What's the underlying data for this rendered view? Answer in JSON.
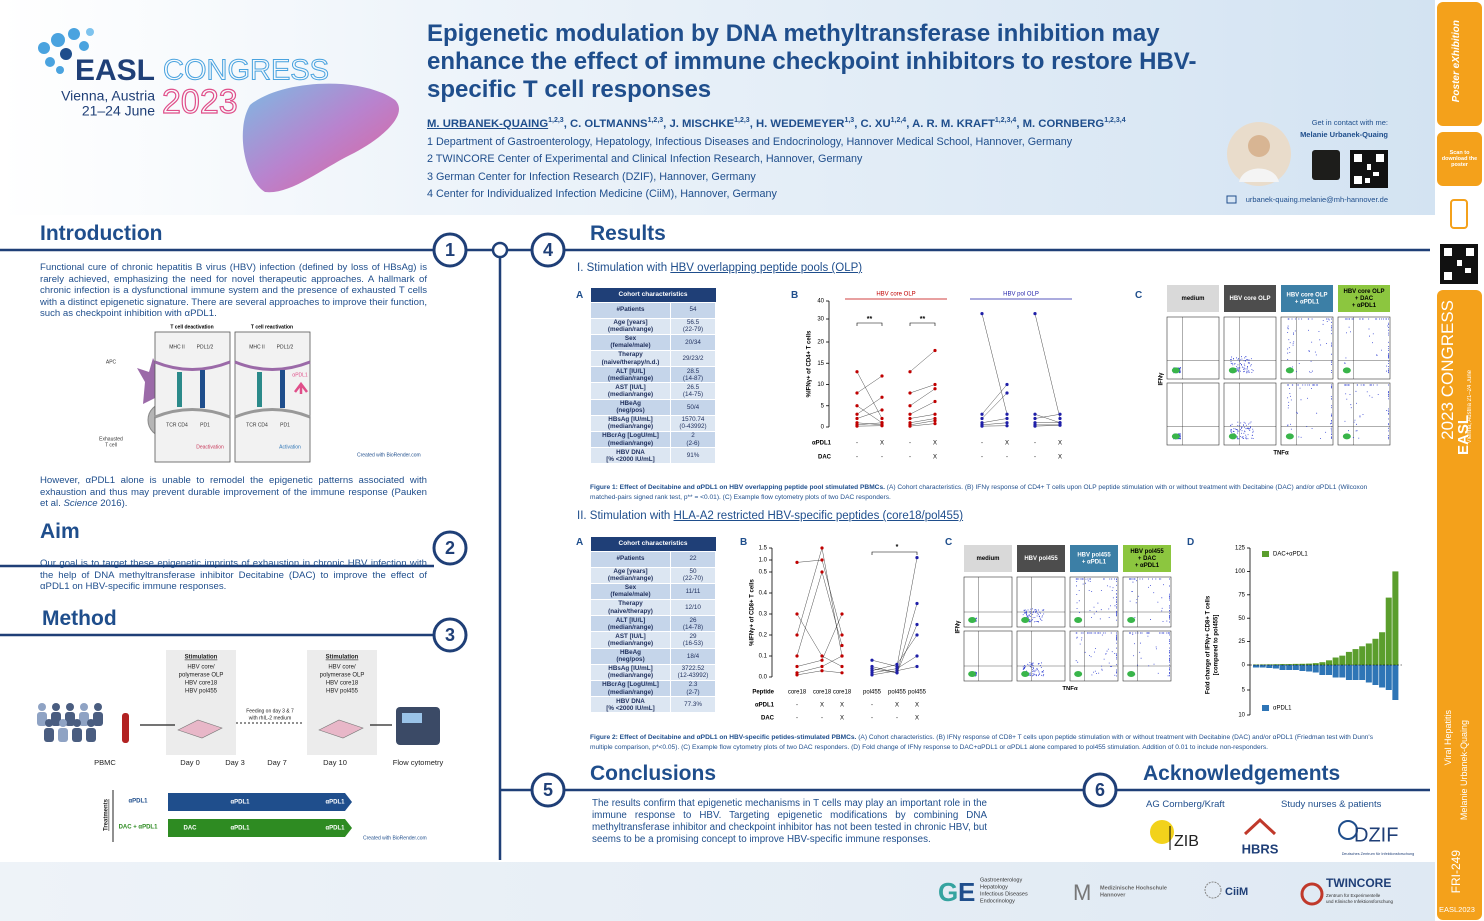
{
  "logo": {
    "name": "EASL",
    "event": "CONGRESS",
    "city": "Vienna, Austria",
    "dates": "21–24 June",
    "year": "2023"
  },
  "header": {
    "title": "Epigenetic modulation by DNA methyltransferase inhibition may enhance the effect of immune checkpoint inhibitors to restore HBV-specific T cell responses",
    "authors": [
      {
        "name": "M. URBANEK-QUAING",
        "sup": "1,2,3"
      },
      {
        "name": "C. OLTMANNS",
        "sup": "1,2,3"
      },
      {
        "name": "J. MISCHKE",
        "sup": "1,2,3"
      },
      {
        "name": "H. WEDEMEYER",
        "sup": "1,3"
      },
      {
        "name": "C. XU",
        "sup": "1,2,4"
      },
      {
        "name": "A. R. M. KRAFT",
        "sup": "1,2,3,4"
      },
      {
        "name": "M. CORNBERG",
        "sup": "1,2,3,4"
      }
    ],
    "affiliations": [
      "1 Department of Gastroenterology, Hepatology, Infectious Diseases and Endocrinology, Hannover Medical School, Hannover, Germany",
      "2 TWINCORE Center of Experimental and Clinical Infection Research, Hannover, Germany",
      "3 German Center for Infection Research (DZIF), Hannover, Germany",
      "4 Center for Individualized Infection Medicine (CiiM), Hannover, Germany"
    ],
    "contact": {
      "prompt": "Get in contact with me:",
      "name": "Melanie Urbanek-Quaing",
      "email": "urbanek-quaing.melanie@mh-hannover.de"
    }
  },
  "sidebar": {
    "exhibition": "Poster eXhibition",
    "scan": "Scan to download the poster",
    "topic": "Viral Hepatitis",
    "poster_id": "FRI-249",
    "tag": "EASL2023"
  },
  "intro": {
    "number": 1,
    "title": "Introduction",
    "p1": "Functional cure of chronic hepatitis B virus (HBV) infection (defined by loss of HBsAg) is rarely achieved, emphasizing the need for novel therapeutic approaches. A hallmark of chronic infection is a dysfunctional immune system and the presence of exhausted T cells with a distinct epigenetic signature. There are several approaches to improve their function, such as checkpoint inhibition with αPDL1.",
    "p2_start": "However, αPDL1 alone is unable to remodel the epigenetic patterns associated with exhaustion and thus may prevent durable improvement of the immune response (Pauken et al. ",
    "p2_italic": "Science",
    "p2_end": " 2016).",
    "figure": {
      "left": "T cell deactivation",
      "right": "T cell reactivation",
      "apc": "APC",
      "tcell": [
        "Exhausted",
        "T cell"
      ],
      "mhc": "MHC II",
      "pdl": "PDL1/2",
      "tcr": "TCR CD4",
      "pd1": "PD1",
      "deactivation": "Deactivation",
      "activation": "Activation",
      "apdl1": "αPDL1",
      "credit": "Created with BioRender.com"
    }
  },
  "aim": {
    "number": 2,
    "title": "Aim",
    "text": "Our goal is to target these epigenetic imprints of exhaustion in chronic HBV infection with the help of DNA methyltransferase inhibitor Decitabine (DAC) to improve the effect of αPDL1 on HBV-specific immune responses."
  },
  "method": {
    "number": 3,
    "title": "Method",
    "figure": {
      "stim_title": "Stimulation",
      "stim_lines": [
        "HBV core/",
        "polymerase OLP",
        "HBV core18",
        "HBV pol455"
      ],
      "feeding": [
        "Feeding on day 3 & 7",
        "with rhIL-2 medium"
      ],
      "timeline": [
        "PBMC",
        "Day 0",
        "Day 3",
        "Day 7",
        "Day 10",
        "Flow cytometry"
      ],
      "treatments": "Treatments",
      "rows": [
        {
          "name": "αPDL1",
          "segments": [
            "αPDL1",
            "αPDL1"
          ],
          "color": "#1f4e8c"
        },
        {
          "name": "DAC + αPDL1",
          "segments": [
            "DAC",
            "αPDL1",
            "αPDL1"
          ],
          "color": "#2e8b22"
        }
      ],
      "credit": "Created with BioRender.com"
    }
  },
  "results": {
    "number": 4,
    "title": "Results",
    "part1": {
      "prefix": "I. Stimulation with ",
      "link": "HBV overlapping peptide pools (OLP)",
      "panels": [
        "A",
        "B",
        "C"
      ],
      "table": {
        "header": "Cohort characteristics",
        "rows": [
          [
            [
              "#Patients"
            ],
            [
              "54"
            ]
          ],
          [
            [
              "Age [years]",
              "(median/range)"
            ],
            [
              "56.5",
              "(22-79)"
            ]
          ],
          [
            [
              "Sex",
              "(female/male)"
            ],
            [
              "20/34"
            ]
          ],
          [
            [
              "Therapy",
              "(naive/therapy/n.d.)"
            ],
            [
              "29/23/2"
            ]
          ],
          [
            [
              "ALT [IU/L]",
              "(median/range)"
            ],
            [
              "28.5",
              "(14-87)"
            ]
          ],
          [
            [
              "AST [IU/L]",
              "(median/range)"
            ],
            [
              "26.5",
              "(14-75)"
            ]
          ],
          [
            [
              "HBeAg",
              "(neg/pos)"
            ],
            [
              "50/4"
            ]
          ],
          [
            [
              "HBsAg [IU/mL]",
              "(median/range)"
            ],
            [
              "1570.74",
              "(0-43992)"
            ]
          ],
          [
            [
              "HBcrAg [LogU/mL]",
              "(median/range)"
            ],
            [
              "2",
              "(2-6)"
            ]
          ],
          [
            [
              "HBV DNA",
              "[% <2000 IU/mL]"
            ],
            [
              "91%"
            ]
          ]
        ]
      },
      "fig1b": {
        "ylabel": "%IFNγ+ of CD4+ T cells",
        "ylim": [
          0,
          40
        ],
        "yticks": [
          0,
          5,
          10,
          15,
          20,
          30,
          40
        ],
        "groups": [
          {
            "name": "HBV core OLP",
            "color": "#c00000",
            "donors": [
              [
                13,
                2,
                13,
                18
              ],
              [
                8,
                12,
                8,
                10
              ],
              [
                5,
                1,
                5,
                9
              ],
              [
                3,
                7,
                3,
                6
              ],
              [
                2,
                4,
                2,
                3
              ],
              [
                1,
                0.5,
                1,
                2
              ],
              [
                0.5,
                1,
                0.5,
                1.5
              ],
              [
                0.2,
                0.3,
                0.2,
                0.8
              ]
            ]
          },
          {
            "name": "HBV pol OLP",
            "color": "#1f1fa8",
            "donors": [
              [
                33,
                3,
                33,
                2
              ],
              [
                3,
                10,
                3,
                1
              ],
              [
                2,
                8,
                2,
                3
              ],
              [
                1,
                2,
                1,
                1
              ],
              [
                0.5,
                1,
                0.5,
                0.5
              ],
              [
                0.2,
                0.3,
                0.2,
                0.4
              ]
            ]
          }
        ],
        "significance": [
          "**",
          "**"
        ],
        "rows": [
          {
            "name": "αPDL1",
            "marks": [
              "-",
              "X",
              "-",
              "X",
              "-",
              "X",
              "-",
              "X"
            ]
          },
          {
            "name": "DAC",
            "marks": [
              "-",
              "-",
              "-",
              "X",
              "-",
              "-",
              "-",
              "X"
            ]
          }
        ]
      },
      "fig1c": {
        "columns": [
          {
            "title": [
              "medium"
            ],
            "bg": "#d9d9d9",
            "fg": "#000000"
          },
          {
            "title": [
              "HBV core OLP"
            ],
            "bg": "#4d4d4d",
            "fg": "#ffffff"
          },
          {
            "title": [
              "HBV core OLP",
              "+ αPDL1"
            ],
            "bg": "#3c7fa6",
            "fg": "#ffffff"
          },
          {
            "title": [
              "HBV core OLP",
              "+ DAC",
              "+ αPDL1"
            ],
            "bg": "#8cc63f",
            "fg": "#000000"
          }
        ],
        "ylabel": "IFNγ",
        "xlabel": "TNFα"
      },
      "caption": {
        "bold": "Figure 1: Effect of Decitabine and αPDL1 on HBV overlapping peptide pool stimulated PBMCs.",
        "text": " (A) Cohort characteristics. (B) IFNγ response of CD4+ T cells upon OLP peptide stimulation with or without treatment with Decitabine (DAC) and/or αPDL1 (Wilcoxon matched-pairs signed rank test, p** = <0.01). (C) Example flow cytometry plots of two DAC responders."
      }
    },
    "part2": {
      "prefix": "II. Stimulation with ",
      "link": "HLA-A2 restricted HBV-specific peptides (core18/pol455)",
      "panels": [
        "A",
        "B",
        "C",
        "D"
      ],
      "table": {
        "header": "Cohort characteristics",
        "rows": [
          [
            [
              "#Patients"
            ],
            [
              "22"
            ]
          ],
          [
            [
              "Age [years]",
              "(median/range)"
            ],
            [
              "50",
              "(22-70)"
            ]
          ],
          [
            [
              "Sex",
              "(female/male)"
            ],
            [
              "11/11"
            ]
          ],
          [
            [
              "Therapy",
              "(naive/therapy)"
            ],
            [
              "12/10"
            ]
          ],
          [
            [
              "ALT [IU/L]",
              "(median/range)"
            ],
            [
              "26",
              "(14-78)"
            ]
          ],
          [
            [
              "AST [IU/L]",
              "(median/range)"
            ],
            [
              "29",
              "(16-53)"
            ]
          ],
          [
            [
              "HBeAg",
              "(neg/pos)"
            ],
            [
              "18/4"
            ]
          ],
          [
            [
              "HBsAg [IU/mL]",
              "(median/range)"
            ],
            [
              "3722.52",
              "(12-43992)"
            ]
          ],
          [
            [
              "HBcrAg [LogU/mL]",
              "(median/range)"
            ],
            [
              "2.3",
              "(2-7)"
            ]
          ],
          [
            [
              "HBV DNA",
              "[% <2000 IU/mL]"
            ],
            [
              "77.3%"
            ]
          ]
        ]
      },
      "fig2b": {
        "ylabel": "%IFNγ+ of CD8+ T cells",
        "ylim": [
          0,
          1.5
        ],
        "yticks": [
          {
            "value": 0,
            "label": "0.0"
          },
          0.1,
          0.2,
          0.3,
          0.4,
          0.5,
          {
            "value": 1,
            "label": "1.0"
          },
          1.5
        ],
        "groups": [
          {
            "color": "#c00000",
            "donors": [
              [
                0.3,
                0.1,
                0.05
              ],
              [
                0.2,
                1.5,
                0.1
              ],
              [
                0.1,
                0.5,
                0.15
              ],
              [
                0.05,
                0.08,
                0.3
              ],
              [
                0.02,
                0.05,
                0.1
              ],
              [
                0.9,
                1.0,
                0.2
              ],
              [
                0.01,
                0.03,
                0.02
              ]
            ]
          },
          {
            "color": "#1f1fa8",
            "donors": [
              [
                0.08,
                0.05,
                1.1
              ],
              [
                0.05,
                0.02,
                0.35
              ],
              [
                0.03,
                0.06,
                0.2
              ],
              [
                0.02,
                0.04,
                0.1
              ],
              [
                0.01,
                0.03,
                0.05
              ],
              [
                0.04,
                0.02,
                0.25
              ]
            ]
          }
        ],
        "significance": "*",
        "rows": [
          {
            "name": "Peptide",
            "marks": [
              "core18",
              "core18",
              "core18",
              "pol455",
              "pol455",
              "pol455"
            ]
          },
          {
            "name": "αPDL1",
            "marks": [
              "-",
              "X",
              "X",
              "-",
              "X",
              "X"
            ]
          },
          {
            "name": "DAC",
            "marks": [
              "-",
              "-",
              "X",
              "-",
              "-",
              "X"
            ]
          }
        ]
      },
      "fig2c": {
        "columns": [
          {
            "title": [
              "medium"
            ],
            "bg": "#d9d9d9",
            "fg": "#000000"
          },
          {
            "title": [
              "HBV pol455"
            ],
            "bg": "#4d4d4d",
            "fg": "#ffffff"
          },
          {
            "title": [
              "HBV pol455",
              "+ αPDL1"
            ],
            "bg": "#3c7fa6",
            "fg": "#ffffff"
          },
          {
            "title": [
              "HBV pol455",
              "+ DAC",
              "+ αPDL1"
            ],
            "bg": "#8cc63f",
            "fg": "#000000"
          }
        ],
        "ylabel": "IFNγ",
        "xlabel": "TNFα"
      },
      "fig2d": {
        "type": "bar",
        "ylabel": [
          "Fold change of IFNγ+ CD8+ T cells",
          "[compared to pol455]"
        ],
        "ylim": [
          0,
          125
        ],
        "yticks": [
          0,
          25,
          50,
          75,
          100,
          125
        ],
        "y2lim": [
          0,
          10
        ],
        "y2ticks": [
          5,
          10
        ],
        "series": [
          {
            "name": "DAC+αPDL1",
            "color": "#5b9e2d",
            "values": [
              0.5,
              0.6,
              0.7,
              0.8,
              1,
              1,
              1.2,
              1.3,
              1.5,
              2,
              3,
              5,
              8,
              10,
              14,
              17,
              20,
              23,
              28,
              35,
              72,
              100
            ]
          },
          {
            "name": "αPDL1",
            "color": "#2e75b6",
            "axis": "y2",
            "values": [
              0.5,
              0.5,
              0.6,
              0.7,
              1,
              1,
              1,
              1.2,
              1.3,
              1.5,
              2,
              2,
              2.5,
              2.5,
              3,
              3,
              3,
              3.5,
              4,
              4.5,
              5,
              7
            ]
          }
        ]
      },
      "caption": {
        "bold": "Figure 2: Effect of Decitabine and αPDL1 on HBV-specific petides-stimulated PBMCs.",
        "text": " (A) Cohort characteristics. (B) IFNγ response of CD8+ T cells upon peptide stimulation with or without treatment with Decitabine (DAC) and/or αPDL1 (Friedman test with Dunn's multiple comparison, p*<0.05). (C) Example flow cytometry plots of two DAC responders. (D) Fold change of IFNγ response to DAC+αPDL1 or αPDL1 alone compared to pol455 stimulation. Addition of 0.01 to include non-responders."
      }
    }
  },
  "conclusions": {
    "number": 5,
    "title": "Conclusions",
    "text": "The results confirm that epigenetic mechanisms in T cells may play an important role in the immune response to HBV. Targeting epigenetic modifications by combining DNA methyltransferase inhibitor and checkpoint inhibitor has not been tested in chronic HBV, but seems to be a promising concept to improve HBV-specific immune responses."
  },
  "acknowledgements": {
    "number": 6,
    "title": "Acknowledgements",
    "groups": [
      "AG Cornberg/Kraft",
      "Study nurses & patients"
    ],
    "logos": [
      "ZIB",
      "HBRS",
      "DZIF"
    ],
    "dzif_sub": "Deutsches Zentrum für Infektionsforschung"
  },
  "footer": {
    "ghe": [
      "Gastroenterology",
      "Hepatology",
      "Infectious Diseases",
      "Endocrinology"
    ],
    "mhh": [
      "Medizinische Hochschule",
      "Hannover"
    ],
    "ciim": "CiiM",
    "twincore": "TWINCORE",
    "twincore_sub": [
      "Zentrum für Experimentelle",
      "und Klinische Infektionsforschung"
    ]
  }
}
